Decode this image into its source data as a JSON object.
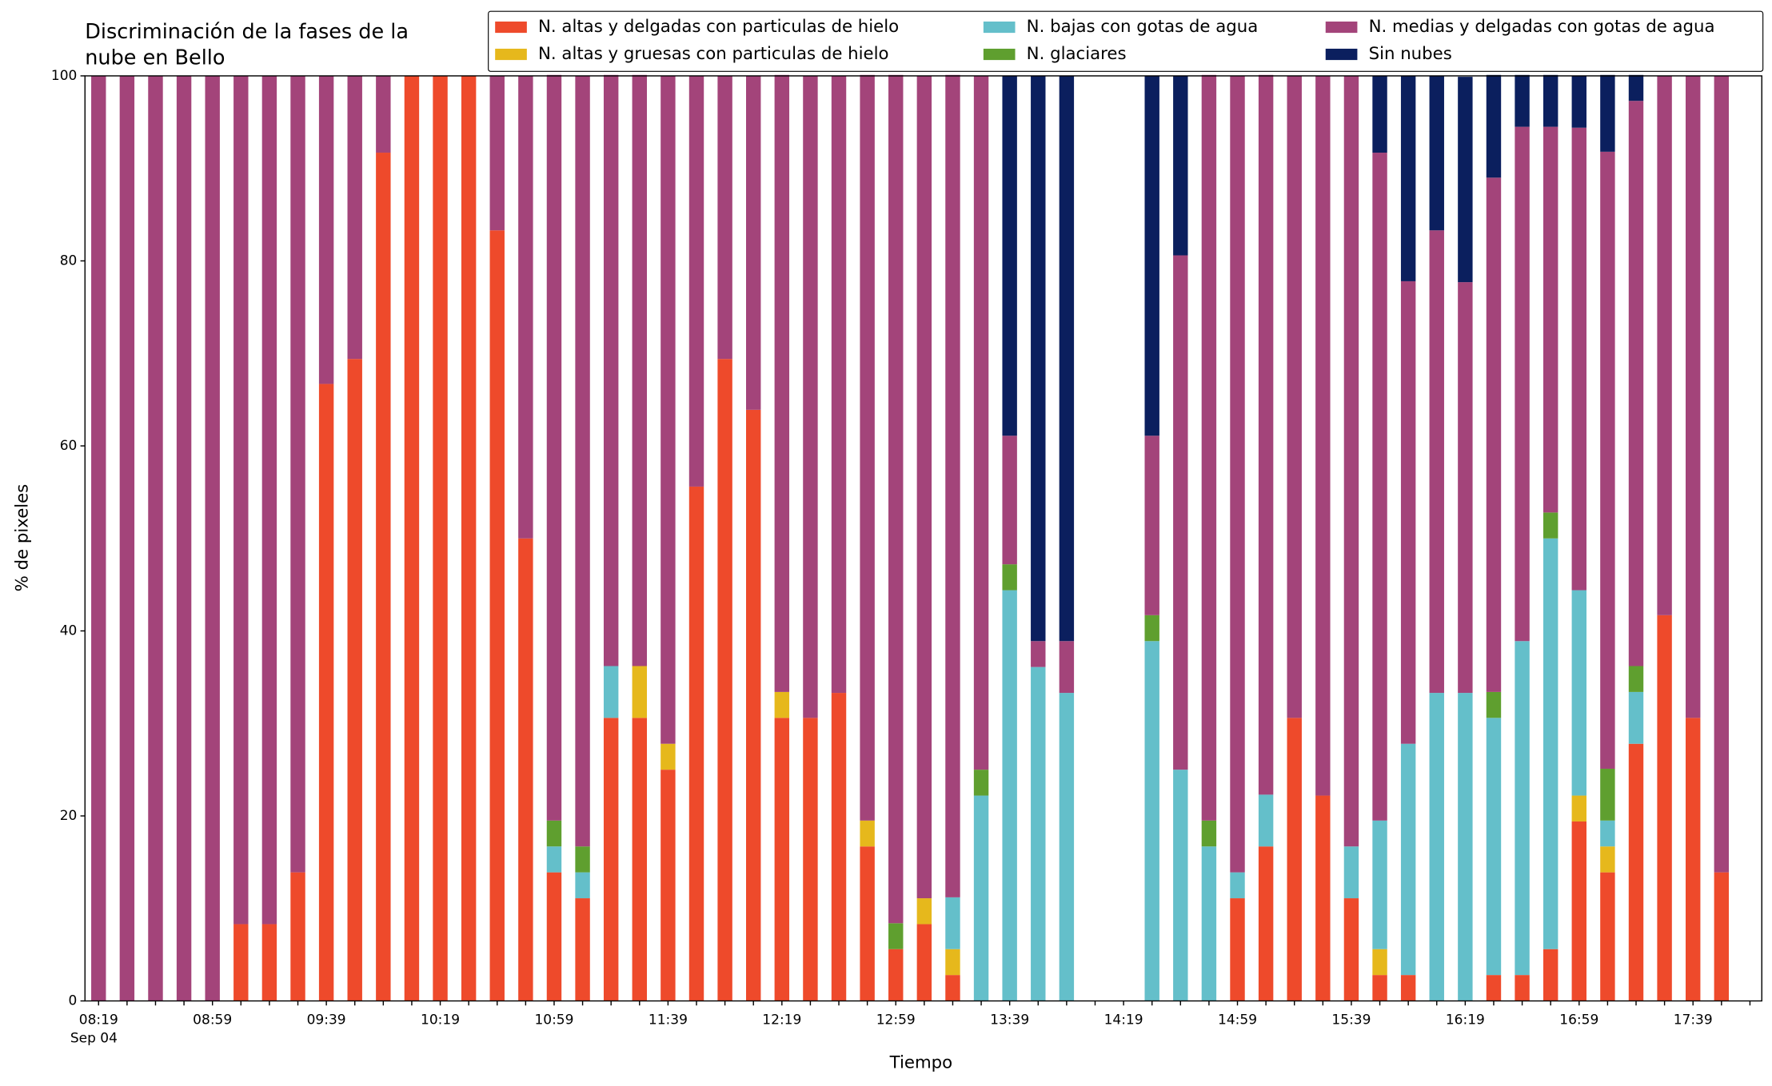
{
  "chart_data": {
    "type": "stacked_bar",
    "title": [
      "Discriminación de la fases de la",
      "nube en Bello"
    ],
    "xlabel": "Tiempo",
    "ylabel": "% de pixeles",
    "x_sublabel": "Sep 04",
    "categories": [
      "08:19",
      null,
      null,
      null,
      "08:59",
      null,
      null,
      null,
      "09:39",
      null,
      null,
      null,
      "10:19",
      null,
      null,
      null,
      "10:59",
      null,
      null,
      null,
      "11:39",
      null,
      null,
      null,
      "12:19",
      null,
      null,
      null,
      "12:59",
      null,
      null,
      null,
      "13:39",
      null,
      null,
      null,
      "14:19",
      null,
      null,
      null,
      "14:59",
      null,
      null,
      null,
      "15:39",
      null,
      null,
      null,
      "16:19",
      null,
      null,
      null,
      "16:59",
      null,
      null,
      null,
      "17:39",
      null
    ],
    "ylim": [
      0,
      100
    ],
    "yticks": [
      0,
      20,
      40,
      60,
      80,
      100
    ],
    "grid": false,
    "legend": "top",
    "series": [
      {
        "name": "N. altas y delgadas con particulas de hielo",
        "color": "#ee4a2b",
        "values": [
          0,
          0,
          0,
          0,
          0,
          8.3,
          8.3,
          13.9,
          66.7,
          69.4,
          91.7,
          100,
          100,
          100,
          83.3,
          50,
          13.9,
          11.1,
          30.6,
          30.6,
          25,
          55.6,
          69.4,
          63.9,
          30.6,
          30.6,
          33.3,
          16.7,
          5.6,
          8.3,
          2.8,
          0,
          0,
          0,
          0,
          0,
          0,
          0,
          0,
          0,
          11.1,
          16.7,
          30.6,
          22.2,
          11.1,
          2.8,
          2.8,
          0,
          0,
          2.8,
          2.8,
          5.6,
          19.4,
          13.9,
          27.8,
          41.7,
          30.6,
          13.9
        ]
      },
      {
        "name": "N. altas y gruesas con particulas de hielo",
        "color": "#e6b81c",
        "values": [
          0,
          0,
          0,
          0,
          0,
          0,
          0,
          0,
          0,
          0,
          0,
          0,
          0,
          0,
          0,
          0,
          0,
          0,
          0,
          5.6,
          2.8,
          0,
          0,
          0,
          2.8,
          0,
          0,
          2.8,
          0,
          2.8,
          2.8,
          0,
          0,
          0,
          0,
          0,
          0,
          0,
          0,
          0,
          0,
          0,
          0,
          0,
          0,
          2.8,
          0,
          0,
          0,
          0,
          0,
          0,
          2.8,
          2.8,
          0,
          0,
          0,
          0
        ]
      },
      {
        "name": "N. bajas con gotas de agua",
        "color": "#64bfca",
        "values": [
          0,
          0,
          0,
          0,
          0,
          0,
          0,
          0,
          0,
          0,
          0,
          0,
          0,
          0,
          0,
          0,
          2.8,
          2.8,
          5.6,
          0,
          0,
          0,
          0,
          0,
          0,
          0,
          0,
          0,
          0,
          0,
          5.6,
          22.2,
          44.4,
          36.1,
          33.3,
          0,
          0,
          38.9,
          25,
          16.7,
          2.8,
          5.6,
          0,
          0,
          5.6,
          13.9,
          25,
          33.3,
          33.3,
          27.8,
          36.1,
          44.4,
          22.2,
          2.8,
          5.6,
          0,
          0,
          0
        ]
      },
      {
        "name": "N. glaciares",
        "color": "#5f9f2f",
        "values": [
          0,
          0,
          0,
          0,
          0,
          0,
          0,
          0,
          0,
          0,
          0,
          0,
          0,
          0,
          0,
          0,
          2.8,
          2.8,
          0,
          0,
          0,
          0,
          0,
          0,
          0,
          0,
          0,
          0,
          2.8,
          0,
          0,
          2.8,
          2.8,
          0,
          0,
          0,
          0,
          2.8,
          0,
          2.8,
          0,
          0,
          0,
          0,
          0,
          0,
          0,
          0,
          0,
          2.8,
          0,
          2.8,
          0,
          5.6,
          2.8,
          0,
          0,
          0
        ]
      },
      {
        "name": "N. medias y delgadas con gotas de agua",
        "color": "#a3447a",
        "values": [
          100,
          100,
          100,
          100,
          100,
          91.7,
          91.7,
          86.1,
          33.3,
          30.6,
          8.3,
          0,
          0,
          0,
          16.7,
          50,
          80.6,
          83.3,
          63.9,
          63.9,
          72.2,
          44.4,
          30.6,
          36.1,
          66.7,
          69.4,
          66.7,
          80.6,
          91.7,
          88.9,
          88.9,
          75,
          13.9,
          2.8,
          5.6,
          0,
          0,
          19.4,
          55.6,
          80.6,
          86.1,
          77.8,
          69.4,
          77.8,
          83.3,
          72.2,
          50,
          50,
          44.4,
          55.6,
          55.6,
          41.7,
          50,
          66.7,
          61.1,
          58.3,
          69.4,
          86.1
        ]
      },
      {
        "name": "Sin nubes",
        "color": "#0b1f5e",
        "values": [
          0,
          0,
          0,
          0,
          0,
          0,
          0,
          0,
          0,
          0,
          0,
          0,
          0,
          0,
          0,
          0,
          0,
          0,
          0,
          0,
          0,
          0,
          0,
          0,
          0,
          0,
          0,
          0,
          0,
          0,
          0,
          0,
          38.9,
          61.1,
          61.1,
          0,
          0,
          38.9,
          19.4,
          0,
          0,
          0,
          0,
          0,
          0,
          8.3,
          22.2,
          16.7,
          22.2,
          11.1,
          5.6,
          5.6,
          5.6,
          8.3,
          2.8,
          0,
          0,
          0
        ]
      }
    ]
  }
}
